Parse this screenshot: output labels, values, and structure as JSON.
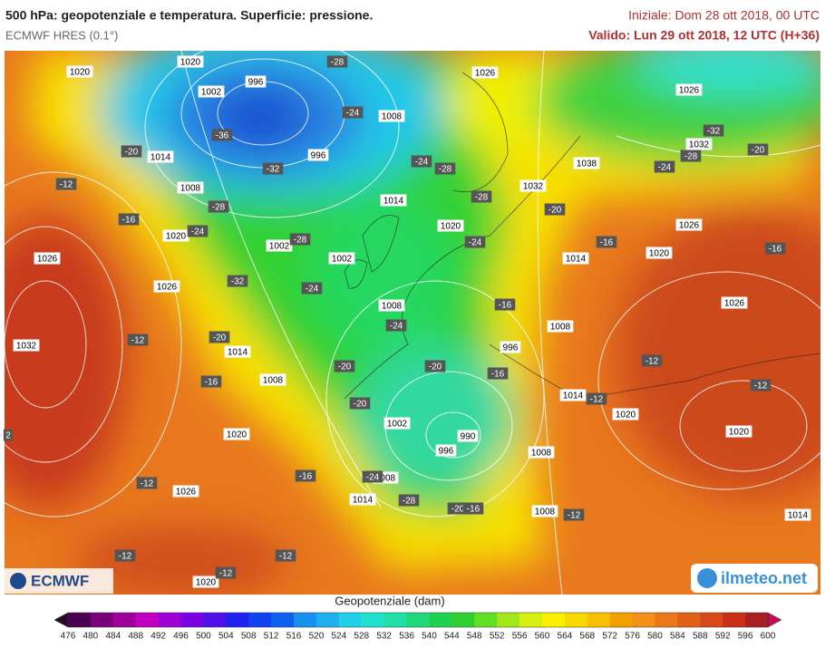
{
  "header": {
    "title": "500 hPa: geopotenziale e temperatura. Superficie: pressione.",
    "model": "ECMWF HRES (0.1°)",
    "init": "Iniziale: Dom 28 ott 2018, 00 UTC",
    "valid": "Valido: Lun 29 ott 2018, 12 UTC (H+36)"
  },
  "map": {
    "isobar_labels": [
      "1020",
      "1020",
      "1002",
      "996",
      "1026",
      "1026",
      "1008",
      "996",
      "1014",
      "1032",
      "1038",
      "1032",
      "1008",
      "1014",
      "1020",
      "1026",
      "1020",
      "1002",
      "1002",
      "1020",
      "1014",
      "1026",
      "1026",
      "1008",
      "1026",
      "1032",
      "1008",
      "996",
      "1014",
      "1008",
      "1014",
      "1020",
      "1002",
      "990",
      "1020",
      "1020",
      "996",
      "1008",
      "1026",
      "1008",
      "1014",
      "1008",
      "1014",
      "1020"
    ],
    "temperature_labels": [
      "-28",
      "-24",
      "-36",
      "-32",
      "-20",
      "-12",
      "-16",
      "-28",
      "-24",
      "-28",
      "-32",
      "-24",
      "-24",
      "-28",
      "-28",
      "-24",
      "-20",
      "-32",
      "-28",
      "-24",
      "-20",
      "-16",
      "-16",
      "-16",
      "-24",
      "-12",
      "-20",
      "-20",
      "-20",
      "-16",
      "-16",
      "-12",
      "-12",
      "-20",
      "-12",
      "-16",
      "-24",
      "-12",
      "-28",
      "-20",
      "-16",
      "-12",
      "-12",
      "-12",
      "-12",
      "2"
    ],
    "logos": [
      "ECMWF",
      "ilmeteo.net"
    ]
  },
  "colorbar": {
    "title": "Geopotenziale (dam)",
    "labels": [
      "476",
      "480",
      "484",
      "488",
      "492",
      "496",
      "500",
      "504",
      "508",
      "512",
      "516",
      "520",
      "524",
      "528",
      "532",
      "536",
      "540",
      "544",
      "548",
      "552",
      "556",
      "560",
      "564",
      "568",
      "572",
      "576",
      "580",
      "584",
      "588",
      "592",
      "596",
      "600"
    ]
  }
}
